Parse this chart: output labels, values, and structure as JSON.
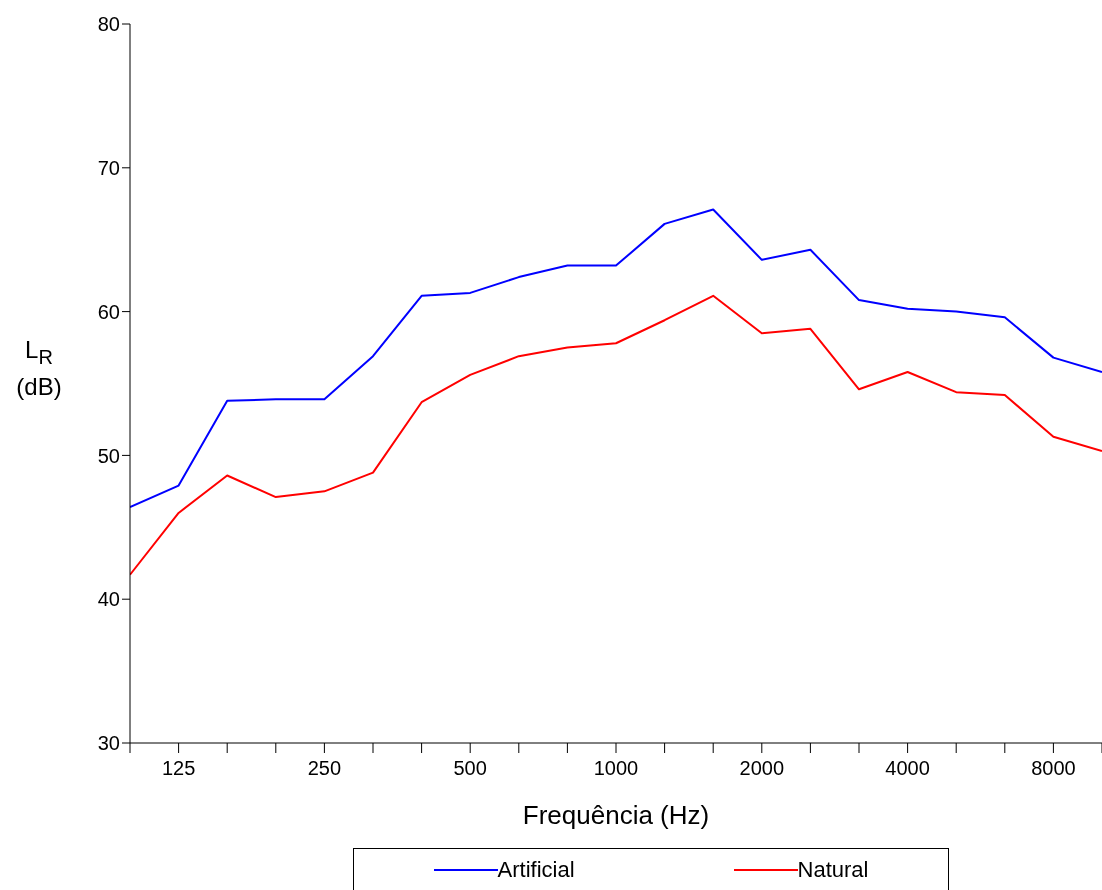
{
  "chart_data": {
    "type": "line",
    "xlabel": "Frequência (Hz)",
    "ylabel": "L$_{R}$ (dB)",
    "categories": [
      null,
      "125",
      null,
      null,
      "250",
      null,
      null,
      "500",
      null,
      null,
      "1000",
      null,
      null,
      "2000",
      null,
      null,
      "4000",
      null,
      null,
      "8000",
      null
    ],
    "series": [
      {
        "name": "Artificial",
        "color": "#0000ff",
        "values": [
          46.4,
          47.9,
          53.8,
          53.9,
          53.9,
          56.9,
          61.1,
          61.3,
          62.4,
          63.2,
          63.2,
          66.1,
          67.1,
          63.6,
          64.3,
          60.8,
          60.2,
          60.0,
          59.6,
          56.8,
          55.8
        ]
      },
      {
        "name": "Natural",
        "color": "#ff0000",
        "values": [
          41.7,
          46.0,
          48.6,
          47.1,
          47.5,
          48.8,
          53.7,
          55.6,
          56.9,
          57.5,
          57.8,
          59.4,
          61.1,
          58.5,
          58.8,
          54.6,
          55.8,
          54.4,
          54.2,
          51.3,
          50.3
        ]
      }
    ],
    "ylim": [
      30,
      80
    ],
    "yticks": [
      30,
      40,
      50,
      60,
      70,
      80
    ],
    "grid": false,
    "legend": "bottom",
    "marker": "none",
    "line_style": "solid"
  }
}
